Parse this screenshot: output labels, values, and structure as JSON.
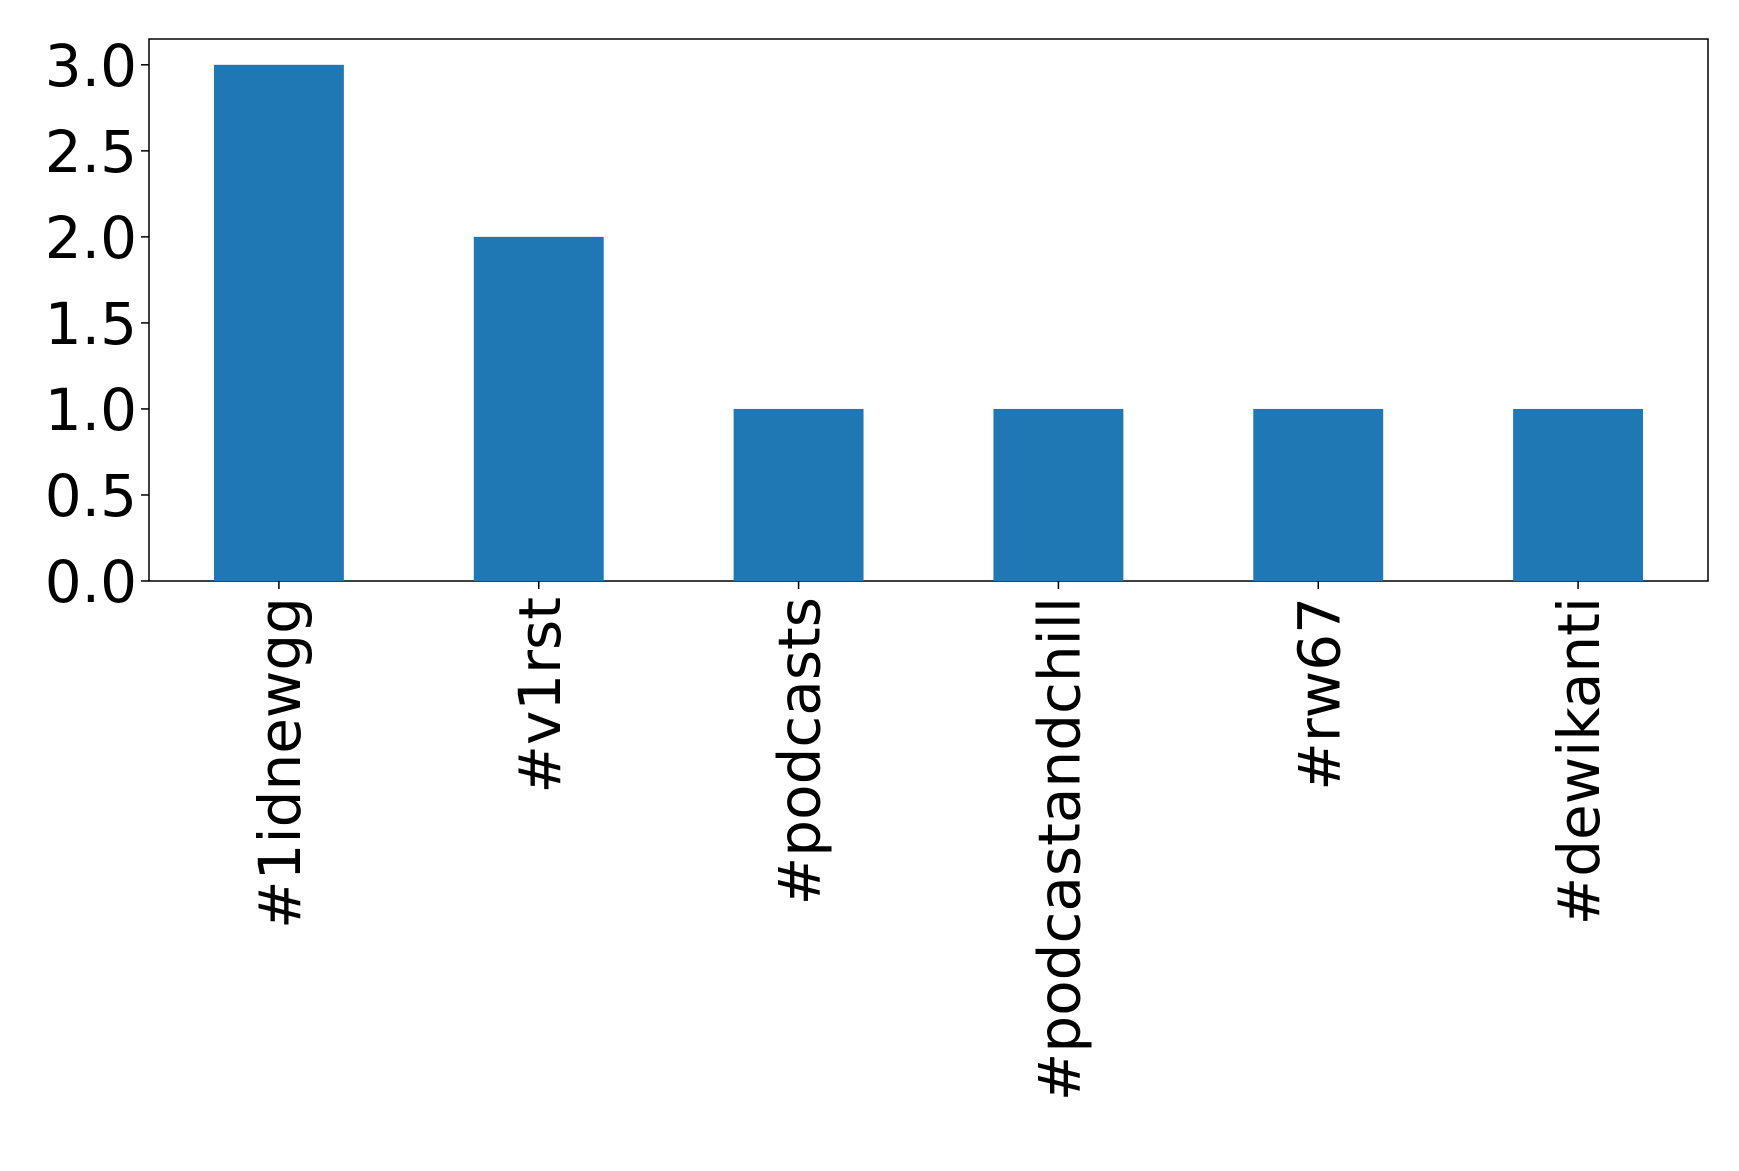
{
  "chart_data": {
    "type": "bar",
    "categories": [
      "#1idnewgg",
      "#v1rst",
      "#podcasts",
      "#podcastandchill",
      "#rw67",
      "#dewikanti"
    ],
    "values": [
      3,
      2,
      1,
      1,
      1,
      1
    ],
    "color": "#1f77b4",
    "ylim": [
      0,
      3.15
    ],
    "yticks": [
      {
        "value": 0,
        "label": "0.0"
      },
      0.5,
      {
        "value": 1,
        "label": "1.0"
      },
      1.5,
      {
        "value": 2,
        "label": "2.0"
      },
      2.5,
      {
        "value": 3,
        "label": "3.0"
      }
    ],
    "grid": false
  }
}
